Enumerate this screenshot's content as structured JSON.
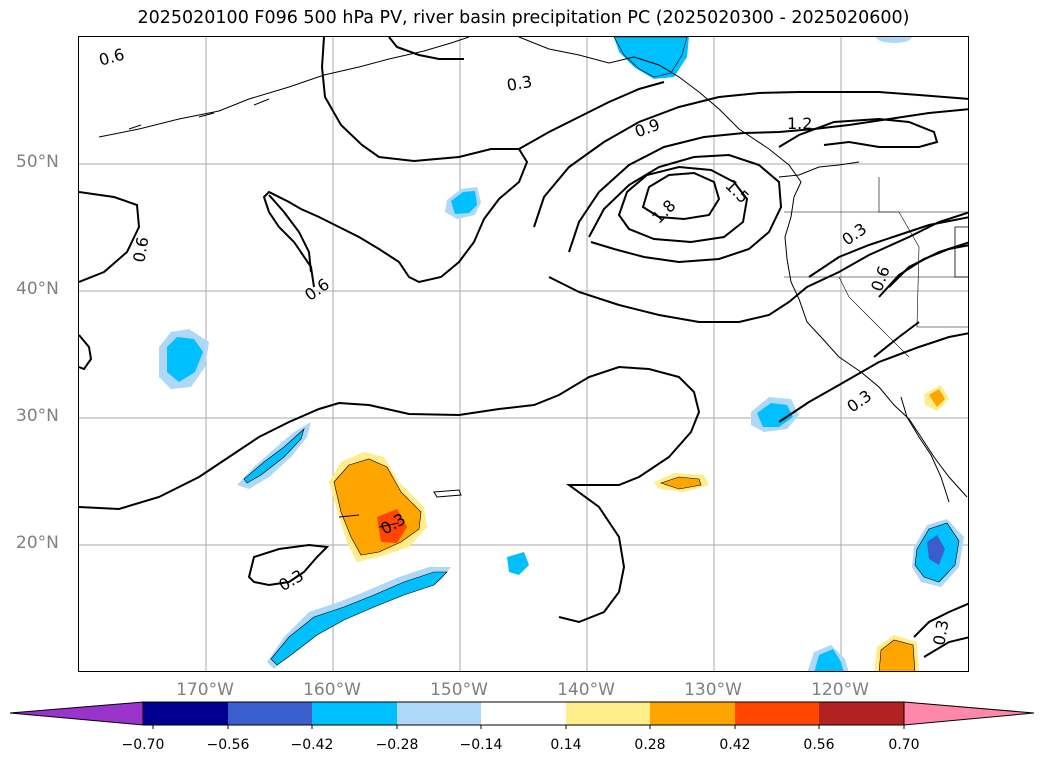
{
  "title": "2025020100 F096 500 hPa PV, river basin precipitation PC (2025020300 - 2025020600)",
  "lat_labels": [
    {
      "text": "50°N",
      "lat": 50
    },
    {
      "text": "40°N",
      "lat": 40
    },
    {
      "text": "30°N",
      "lat": 30
    },
    {
      "text": "20°N",
      "lat": 20
    }
  ],
  "lon_labels": [
    {
      "text": "170°W",
      "lon": -170
    },
    {
      "text": "160°W",
      "lon": -160
    },
    {
      "text": "150°W",
      "lon": -150
    },
    {
      "text": "140°W",
      "lon": -140
    },
    {
      "text": "130°W",
      "lon": -130
    },
    {
      "text": "120°W",
      "lon": -120
    }
  ],
  "contour_labels": [
    "0.6",
    "0.3",
    "0.9",
    "1.2",
    "1.8",
    "1.5",
    "0.6",
    "0.6",
    "0.3",
    "0.6",
    "0.3",
    "0.3",
    "0.3",
    "0.3"
  ],
  "colorbar": {
    "ticks": [
      "−0.70",
      "−0.56",
      "−0.42",
      "−0.28",
      "−0.14",
      "0.14",
      "0.28",
      "0.42",
      "0.56",
      "0.70"
    ],
    "colors": [
      "#9933cc",
      "#000090",
      "#3a5fcd",
      "#00bfff",
      "#add8f7",
      "#ffffff",
      "#ffec8b",
      "#ffa500",
      "#ff4500",
      "#b22222",
      "#ff88aa",
      "#ff88aa"
    ]
  }
}
